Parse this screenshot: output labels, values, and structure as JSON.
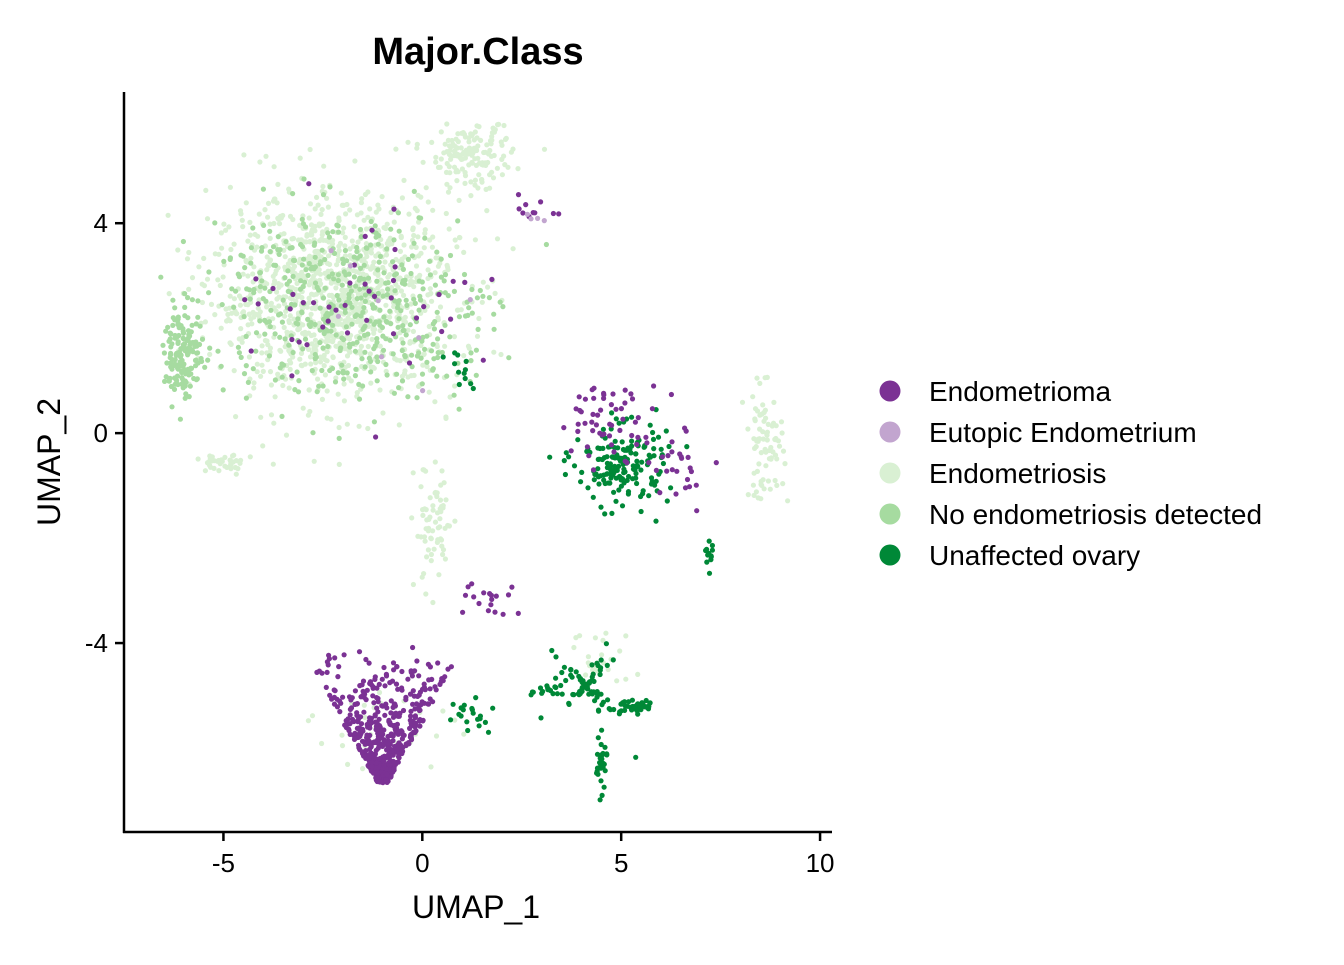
{
  "chart_data": {
    "type": "scatter",
    "title": "Major.Class",
    "xlabel": "UMAP_1",
    "ylabel": "UMAP_2",
    "xlim": [
      -7.5,
      10.3
    ],
    "ylim": [
      -7.6,
      6.5
    ],
    "xticks": [
      -5,
      0,
      5,
      10
    ],
    "yticks": [
      -4,
      0,
      4
    ],
    "grid": false,
    "legend_position": "right",
    "series": [
      {
        "name": "Endometrioma",
        "color": "#7B3294",
        "clusters": [
          {
            "cx": -1.0,
            "cy": -5.3,
            "sx": 1.45,
            "sy": 0.85,
            "n": 520,
            "shape": "triangle"
          },
          {
            "cx": 4.7,
            "cy": 0.25,
            "sx": 0.9,
            "sy": 0.5,
            "n": 55
          },
          {
            "cx": 6.6,
            "cy": -0.6,
            "sx": 0.6,
            "sy": 0.5,
            "n": 25
          },
          {
            "cx": 1.6,
            "cy": -3.1,
            "sx": 0.55,
            "sy": 0.3,
            "n": 18
          },
          {
            "cx": 2.8,
            "cy": 4.3,
            "sx": 0.4,
            "sy": 0.2,
            "n": 10
          },
          {
            "cx": -1.5,
            "cy": 2.6,
            "sx": 2.3,
            "sy": 1.3,
            "n": 45
          }
        ]
      },
      {
        "name": "Eutopic Endometrium",
        "color": "#C2A5CF",
        "clusters": [
          {
            "cx": -1.5,
            "cy": 2.8,
            "sx": 2.0,
            "sy": 1.3,
            "n": 8
          },
          {
            "cx": 3.0,
            "cy": 4.1,
            "sx": 0.3,
            "sy": 0.15,
            "n": 4
          }
        ]
      },
      {
        "name": "Endometriosis",
        "color": "#D9F0D3",
        "clusters": [
          {
            "cx": -2.2,
            "cy": 2.6,
            "sx": 2.2,
            "sy": 1.35,
            "n": 1150
          },
          {
            "cx": 1.2,
            "cy": 5.3,
            "sx": 0.75,
            "sy": 0.45,
            "n": 160
          },
          {
            "cx": 0.3,
            "cy": -1.8,
            "sx": 0.35,
            "sy": 0.9,
            "n": 70
          },
          {
            "cx": -5.0,
            "cy": -0.6,
            "sx": 0.5,
            "sy": 0.15,
            "n": 40
          },
          {
            "cx": 8.6,
            "cy": -0.2,
            "sx": 0.35,
            "sy": 0.75,
            "n": 80
          },
          {
            "cx": 4.5,
            "cy": -4.4,
            "sx": 0.6,
            "sy": 0.5,
            "n": 25
          },
          {
            "cx": -1.0,
            "cy": -5.6,
            "sx": 1.3,
            "sy": 0.6,
            "n": 40
          }
        ]
      },
      {
        "name": "No endometriosis detected",
        "color": "#A6DBA0",
        "clusters": [
          {
            "cx": -6.0,
            "cy": 1.5,
            "sx": 0.35,
            "sy": 0.6,
            "n": 150
          },
          {
            "cx": -2.2,
            "cy": 2.5,
            "sx": 2.3,
            "sy": 1.3,
            "n": 420
          },
          {
            "cx": 0.2,
            "cy": 1.8,
            "sx": 0.9,
            "sy": 1.0,
            "n": 60
          }
        ]
      },
      {
        "name": "Unaffected ovary",
        "color": "#008837",
        "clusters": [
          {
            "cx": 5.0,
            "cy": -0.6,
            "sx": 0.85,
            "sy": 0.55,
            "n": 170
          },
          {
            "cx": 4.1,
            "cy": -4.8,
            "sx": 0.4,
            "sy": 0.3,
            "n": 70,
            "shape": "star"
          },
          {
            "cx": 5.3,
            "cy": -5.2,
            "sx": 0.45,
            "sy": 0.12,
            "n": 45
          },
          {
            "cx": 4.5,
            "cy": -6.3,
            "sx": 0.1,
            "sy": 0.35,
            "n": 30
          },
          {
            "cx": 3.3,
            "cy": -4.9,
            "sx": 0.4,
            "sy": 0.12,
            "n": 20
          },
          {
            "cx": 7.2,
            "cy": -2.3,
            "sx": 0.07,
            "sy": 0.22,
            "n": 12
          },
          {
            "cx": 1.0,
            "cy": 1.2,
            "sx": 0.3,
            "sy": 0.3,
            "n": 12
          },
          {
            "cx": 1.2,
            "cy": -5.4,
            "sx": 0.5,
            "sy": 0.4,
            "n": 20
          }
        ]
      }
    ]
  }
}
